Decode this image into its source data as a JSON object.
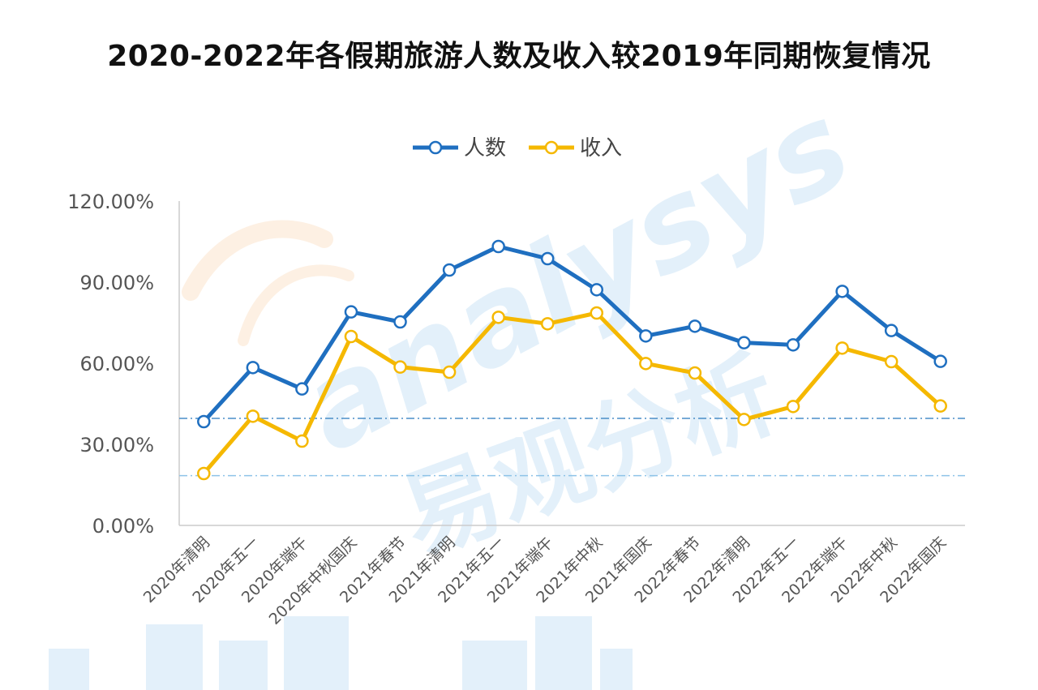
{
  "chart_data": {
    "type": "line",
    "title": "2020-2022年各假期旅游人数及收入较2019年同期恢复情况",
    "categories": [
      "2020年清明",
      "2020年五一",
      "2020年端午",
      "2020年中秋国庆",
      "2021年春节",
      "2021年清明",
      "2021年五一",
      "2021年端午",
      "2021年中秋",
      "2021年国庆",
      "2022年春节",
      "2022年清明",
      "2022年五一",
      "2022年端午",
      "2022年中秋",
      "2022年国庆"
    ],
    "series": [
      {
        "name": "人数",
        "color": "#1f6fc0",
        "values": [
          38.4,
          58.4,
          50.5,
          79,
          75.3,
          94.5,
          103.2,
          98.7,
          87.2,
          70.1,
          73.7,
          67.6,
          66.8,
          86.6,
          72.1,
          60.7
        ]
      },
      {
        "name": "收入",
        "color": "#f5b800",
        "values": [
          19.2,
          40.4,
          31.2,
          69.9,
          58.6,
          56.7,
          77.0,
          74.6,
          78.6,
          59.9,
          56.4,
          39.2,
          44.0,
          65.6,
          60.6,
          44.2
        ]
      }
    ],
    "ylim": [
      0,
      120
    ],
    "yticks": [
      "0.00%",
      "30.00%",
      "60.00%",
      "90.00%",
      "120.00%"
    ],
    "reference_lines": [
      {
        "value": 39.6,
        "color": "#4a8ec8"
      },
      {
        "value": 18.4,
        "color": "#8ec3e8"
      }
    ],
    "legend_position": "top",
    "grid": false
  },
  "watermark": {
    "latin": "analysys",
    "chinese": "易观分析"
  }
}
